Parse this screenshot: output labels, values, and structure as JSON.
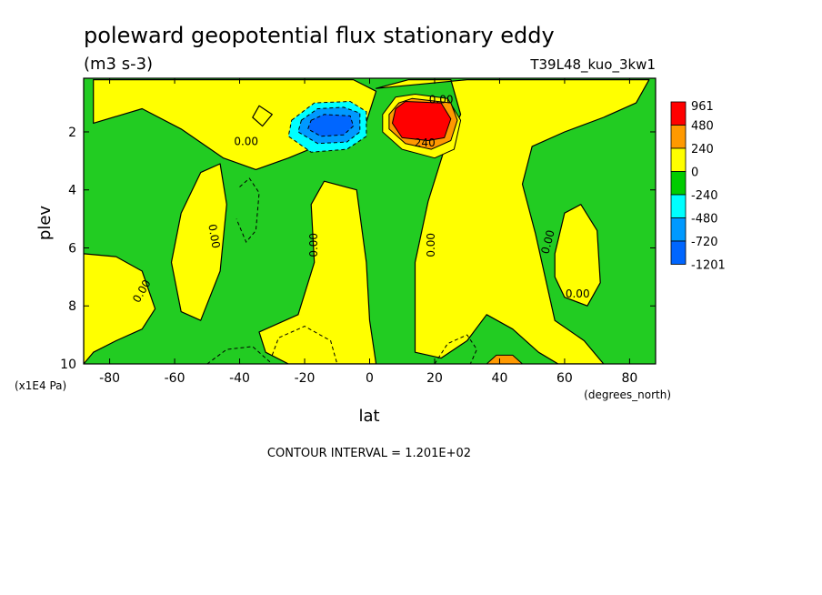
{
  "chart_data": {
    "type": "heatmap",
    "title": "poleward geopotential flux stationary eddy",
    "units": "(m3 s-3)",
    "run_label": "T39L48_kuo_3kw1",
    "xlabel": "lat",
    "x_unit": "(degrees_north)",
    "ylabel": "plev",
    "y_unit": "(x1E4 Pa)",
    "xlim": [
      -88,
      88
    ],
    "ylim": [
      10,
      0.15
    ],
    "x_ticks": [
      -80,
      -60,
      -40,
      -20,
      0,
      20,
      40,
      60,
      80
    ],
    "y_ticks": [
      2,
      4,
      6,
      8,
      10
    ],
    "contour_interval_text": "CONTOUR INTERVAL = 1.201E+02",
    "colorbar": {
      "labels": [
        "961",
        "480",
        "240",
        "0",
        "-240",
        "-480",
        "-720",
        "-1201"
      ],
      "colors": [
        "#ff0000",
        "#ff9900",
        "#ffff00",
        "#00cc00",
        "#00ffff",
        "#0099ff",
        "#0066ff"
      ]
    },
    "colors": {
      "positive": "#ffff00",
      "negative": "#22cc22",
      "strong_positive": "#ff0000",
      "mid_positive": "#ff9900",
      "strong_negative": "#0066ff",
      "mid_negative": "#0099ff",
      "weak_negative": "#00ffff"
    },
    "contour_labels": [
      "0.00",
      "0.00",
      "0.00",
      "0.00",
      "0.00",
      "0.00",
      "0.00",
      "0.00",
      "240"
    ],
    "regions": {
      "positive": [
        [
          [
            -85,
            1.7
          ],
          [
            -70,
            1.2
          ],
          [
            -58,
            1.9
          ],
          [
            -45,
            2.9
          ],
          [
            -35,
            3.3
          ],
          [
            -25,
            2.9
          ],
          [
            -12,
            2.3
          ],
          [
            -2,
            2.0
          ],
          [
            2,
            0.6
          ],
          [
            -5,
            0.2
          ],
          [
            -85,
            0.2
          ]
        ],
        [
          [
            2,
            0.5
          ],
          [
            12,
            0.2
          ],
          [
            25,
            0.2
          ],
          [
            28,
            1.4
          ],
          [
            23,
            2.6
          ],
          [
            18,
            4.4
          ],
          [
            14,
            6.5
          ],
          [
            14,
            9.6
          ],
          [
            22,
            9.8
          ],
          [
            30,
            9.2
          ],
          [
            36,
            8.3
          ],
          [
            44,
            8.8
          ],
          [
            52,
            9.6
          ],
          [
            58,
            10
          ],
          [
            72,
            10
          ],
          [
            66,
            9.2
          ],
          [
            57,
            8.5
          ],
          [
            51,
            5.5
          ],
          [
            47,
            3.8
          ],
          [
            50,
            2.5
          ],
          [
            60,
            2.0
          ],
          [
            72,
            1.5
          ],
          [
            82,
            1.0
          ],
          [
            86,
            0.2
          ],
          [
            30,
            0.2
          ]
        ],
        [
          [
            -58,
            4.8
          ],
          [
            -52,
            3.4
          ],
          [
            -46,
            3.1
          ],
          [
            -44,
            4.5
          ],
          [
            -46,
            6.8
          ],
          [
            -52,
            8.5
          ],
          [
            -58,
            8.2
          ],
          [
            -61,
            6.5
          ]
        ],
        [
          [
            -88,
            6.2
          ],
          [
            -78,
            6.3
          ],
          [
            -70,
            6.8
          ],
          [
            -66,
            8.1
          ],
          [
            -70,
            8.8
          ],
          [
            -78,
            9.2
          ],
          [
            -85,
            9.6
          ],
          [
            -88,
            10
          ]
        ],
        [
          [
            -25,
            10
          ],
          [
            -32,
            9.6
          ],
          [
            -34,
            8.9
          ],
          [
            -22,
            8.3
          ],
          [
            -17,
            6.5
          ],
          [
            -18,
            4.5
          ],
          [
            -14,
            3.7
          ],
          [
            -4,
            4.0
          ],
          [
            -1,
            6.5
          ],
          [
            0,
            8.5
          ],
          [
            2,
            10
          ]
        ],
        [
          [
            57,
            6.2
          ],
          [
            60,
            4.8
          ],
          [
            65,
            4.5
          ],
          [
            70,
            5.4
          ],
          [
            71,
            7.2
          ],
          [
            67,
            8.0
          ],
          [
            60,
            7.7
          ],
          [
            57,
            7.0
          ]
        ],
        [
          [
            -36,
            1.5
          ],
          [
            -34,
            1.1
          ],
          [
            -30,
            1.4
          ],
          [
            -33,
            1.8
          ]
        ]
      ],
      "strong_positive": [
        [
          [
            8,
            1.2
          ],
          [
            11,
            0.95
          ],
          [
            22,
            1.0
          ],
          [
            25,
            1.55
          ],
          [
            23,
            2.2
          ],
          [
            18,
            2.3
          ],
          [
            10,
            2.2
          ],
          [
            7,
            1.7
          ]
        ]
      ],
      "mid_positive": [
        [
          [
            6,
            1.4
          ],
          [
            9,
            1.0
          ],
          [
            13,
            0.85
          ],
          [
            25,
            1.0
          ],
          [
            27,
            1.6
          ],
          [
            25,
            2.3
          ],
          [
            19,
            2.6
          ],
          [
            11,
            2.4
          ],
          [
            6,
            1.9
          ]
        ]
      ],
      "light_positive_ring": [
        [
          [
            4,
            1.4
          ],
          [
            8,
            0.8
          ],
          [
            14,
            0.7
          ],
          [
            24,
            0.85
          ],
          [
            28,
            1.6
          ],
          [
            26,
            2.6
          ],
          [
            20,
            2.9
          ],
          [
            10,
            2.6
          ],
          [
            4,
            2.0
          ]
        ]
      ],
      "strong_negative": [
        [
          [
            -18,
            1.6
          ],
          [
            -14,
            1.4
          ],
          [
            -6,
            1.45
          ],
          [
            -5,
            1.8
          ],
          [
            -8,
            2.1
          ],
          [
            -15,
            2.15
          ],
          [
            -19,
            1.9
          ]
        ]
      ],
      "mid_negative": [
        [
          [
            -21,
            1.6
          ],
          [
            -16,
            1.2
          ],
          [
            -8,
            1.15
          ],
          [
            -3,
            1.35
          ],
          [
            -3,
            2.0
          ],
          [
            -7,
            2.35
          ],
          [
            -16,
            2.4
          ],
          [
            -22,
            2.0
          ]
        ]
      ],
      "weak_negative": [
        [
          [
            -24,
            1.6
          ],
          [
            -17,
            1.0
          ],
          [
            -6,
            0.95
          ],
          [
            -1,
            1.3
          ],
          [
            -1,
            2.15
          ],
          [
            -7,
            2.6
          ],
          [
            -18,
            2.7
          ],
          [
            -25,
            2.15
          ]
        ]
      ],
      "mid_positive_spots": [
        [
          [
            36,
            10
          ],
          [
            39,
            9.7
          ],
          [
            44,
            9.7
          ],
          [
            47,
            10
          ]
        ]
      ]
    }
  }
}
